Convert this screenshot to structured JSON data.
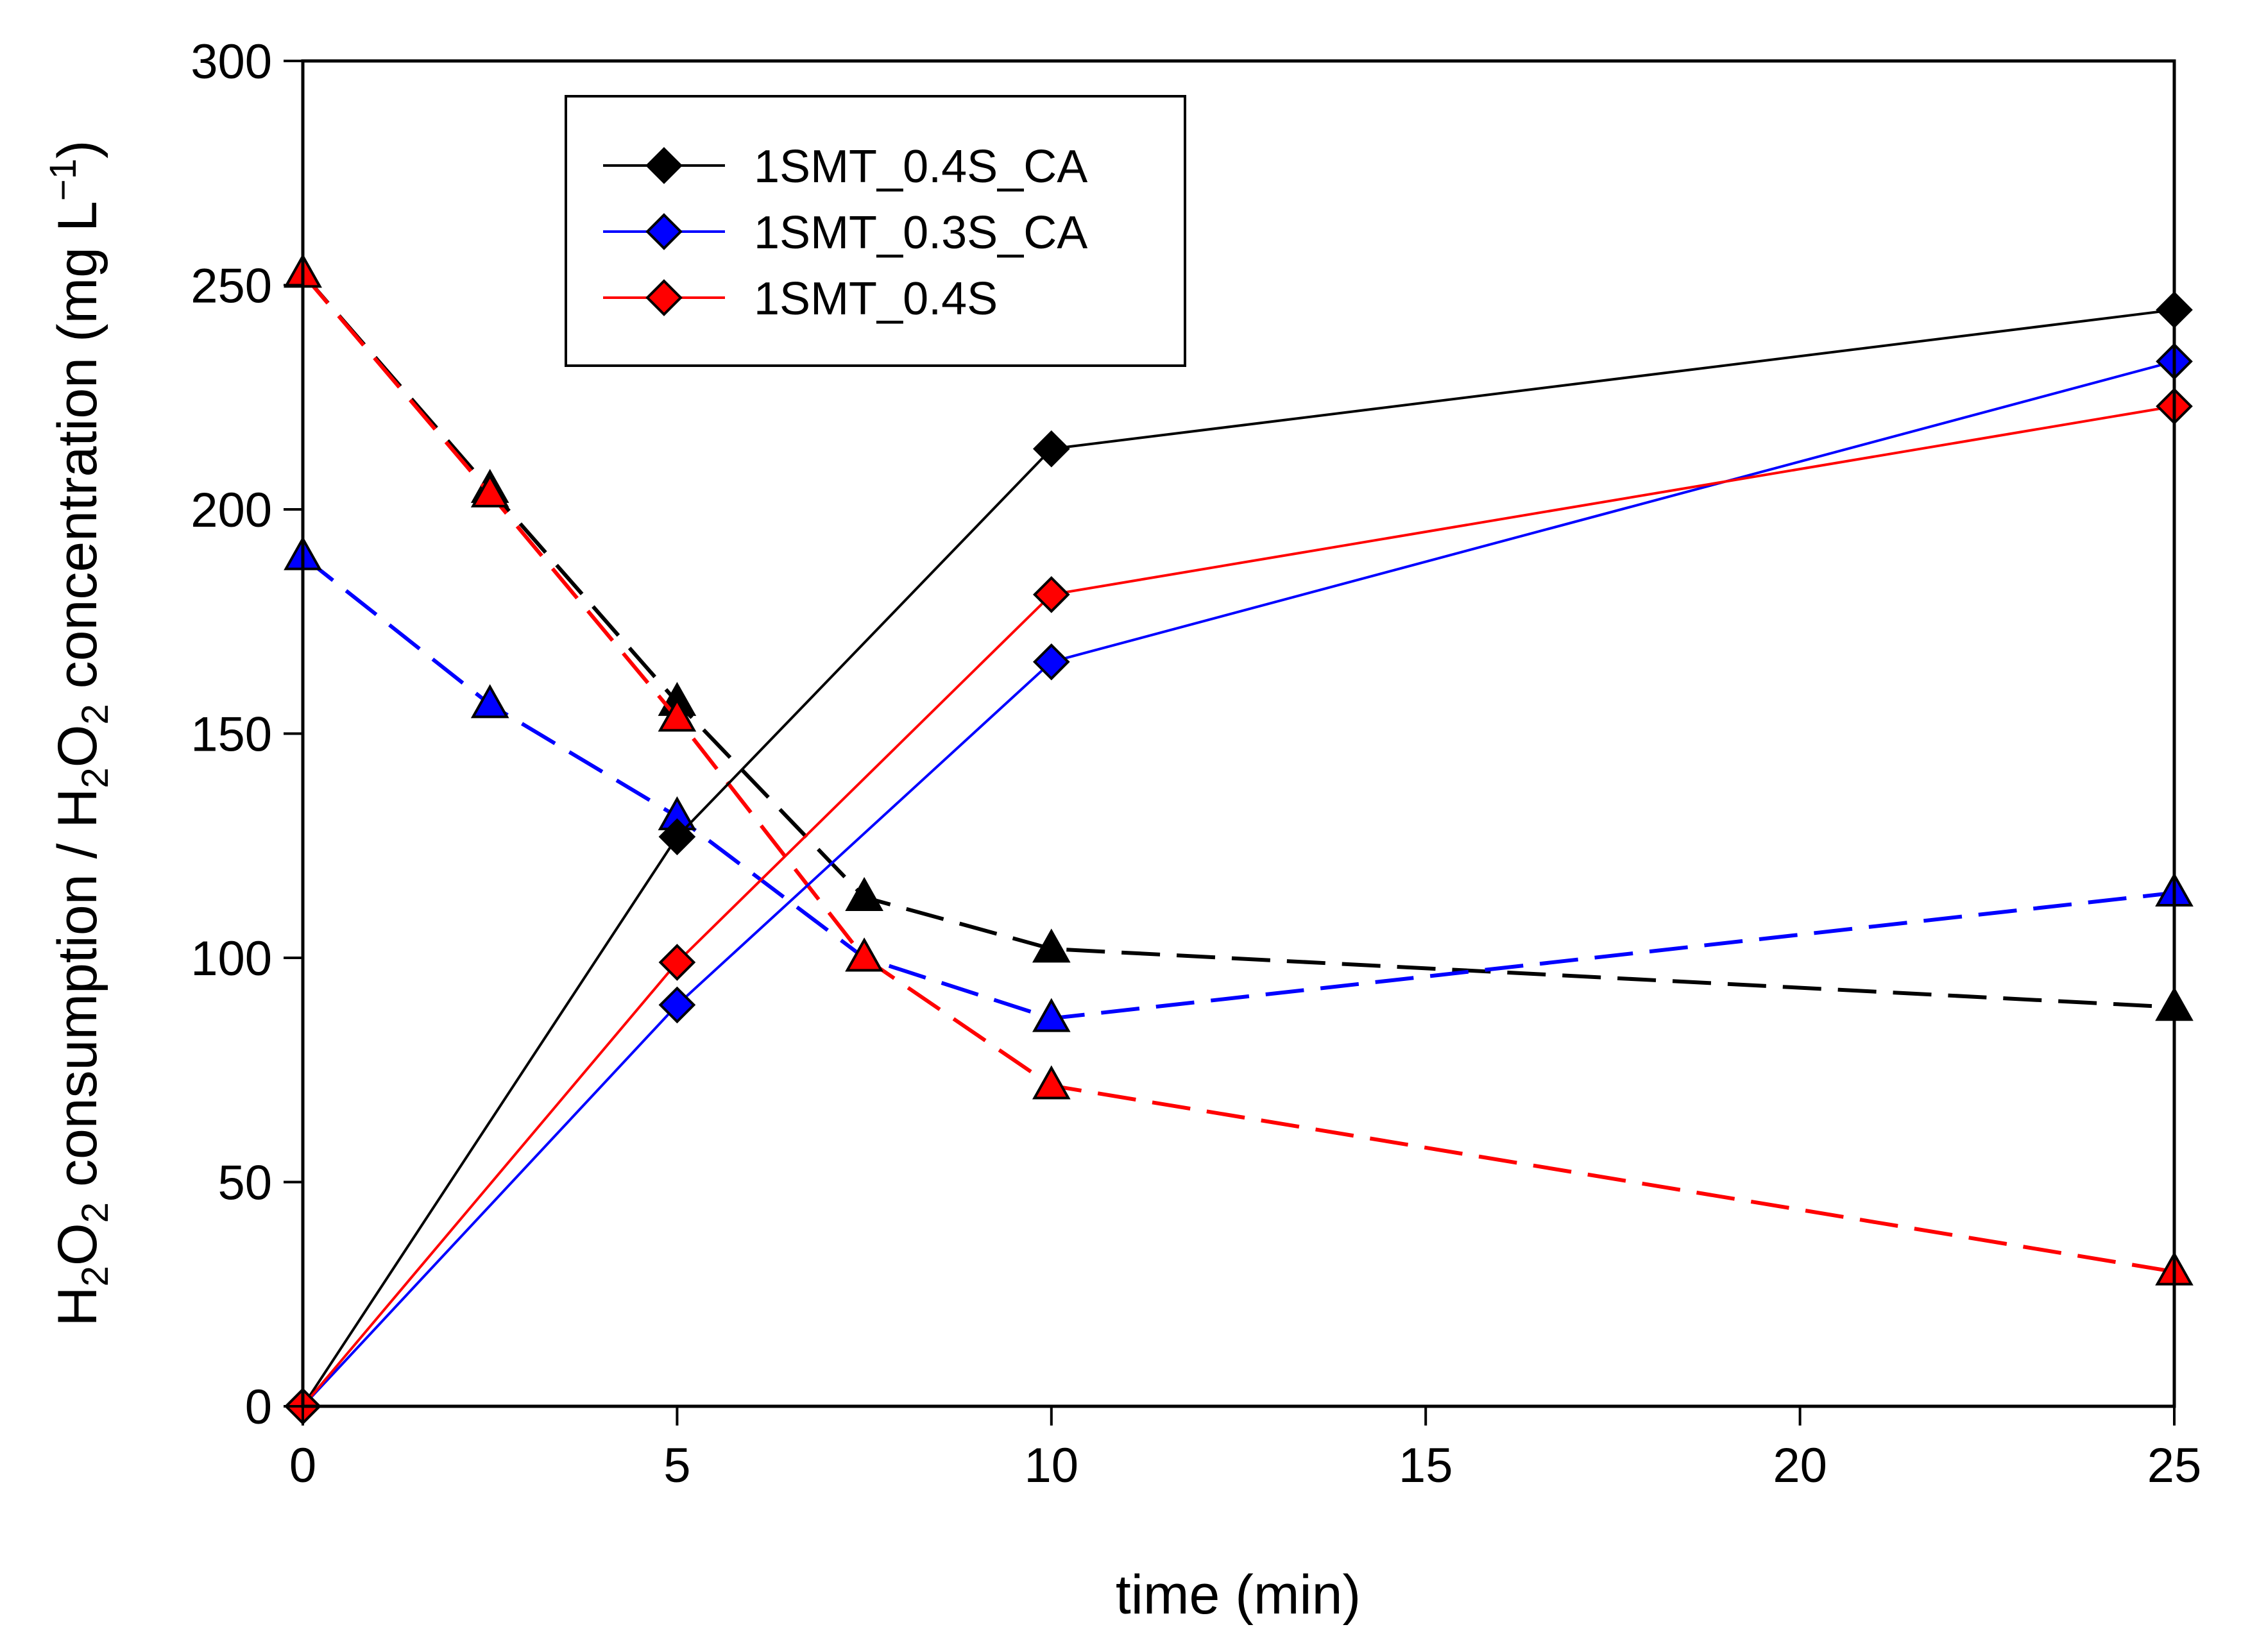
{
  "chart_data": {
    "type": "line",
    "xlabel": "time (min)",
    "ylabel": {
      "segments": [
        {
          "t": "H",
          "s": ""
        },
        {
          "t": "2",
          "s": "sub"
        },
        {
          "t": "O",
          "s": ""
        },
        {
          "t": "2",
          "s": "sub"
        },
        {
          "t": " consumption / H",
          "s": ""
        },
        {
          "t": "2",
          "s": "sub"
        },
        {
          "t": "O",
          "s": ""
        },
        {
          "t": "2",
          "s": "sub"
        },
        {
          "t": " concentration (mg L",
          "s": ""
        },
        {
          "t": "−1",
          "s": "sup"
        },
        {
          "t": ")",
          "s": ""
        }
      ]
    },
    "xlim": [
      0,
      25
    ],
    "ylim": [
      0,
      300
    ],
    "xticks": [
      "0",
      "5",
      "10",
      "15",
      "20",
      "25"
    ],
    "yticks": [
      "0",
      "50",
      "100",
      "150",
      "200",
      "250",
      "300"
    ],
    "grid": false,
    "legend_position": "top-left",
    "series": [
      {
        "name": "1SMT_0.4S_CA",
        "legend": true,
        "color": "#000000",
        "marker": "diamond",
        "dash": "solid",
        "x": [
          0,
          5,
          10,
          25
        ],
        "y": [
          0,
          127,
          213.5,
          244.5
        ]
      },
      {
        "name": "1SMT_0.3S_CA",
        "legend": true,
        "color": "#0000ff",
        "marker": "diamond",
        "dash": "solid",
        "x": [
          0,
          5,
          10,
          25
        ],
        "y": [
          0,
          89.5,
          166,
          233
        ]
      },
      {
        "name": "1SMT_0.4S",
        "legend": true,
        "color": "#ff0000",
        "marker": "diamond",
        "dash": "solid",
        "x": [
          0,
          5,
          10,
          25
        ],
        "y": [
          0,
          99,
          181,
          223
        ]
      },
      {
        "name": "",
        "legend": false,
        "color": "#000000",
        "marker": "triangle",
        "dash": "dashed",
        "x": [
          0,
          2.5,
          5,
          7.5,
          10,
          25
        ],
        "y": [
          252.5,
          204.5,
          157,
          113.5,
          102,
          89
        ]
      },
      {
        "name": "",
        "legend": false,
        "color": "#0000ff",
        "marker": "triangle",
        "dash": "dashed",
        "x": [
          0,
          2.5,
          5,
          7.5,
          10,
          25
        ],
        "y": [
          189.5,
          156.5,
          131.5,
          100,
          86.5,
          114.5
        ]
      },
      {
        "name": "",
        "legend": false,
        "color": "#ff0000",
        "marker": "triangle",
        "dash": "dashed",
        "x": [
          0,
          2.5,
          5,
          7.5,
          10,
          25
        ],
        "y": [
          252.5,
          203.5,
          153.5,
          100,
          71.5,
          30
        ]
      }
    ]
  }
}
